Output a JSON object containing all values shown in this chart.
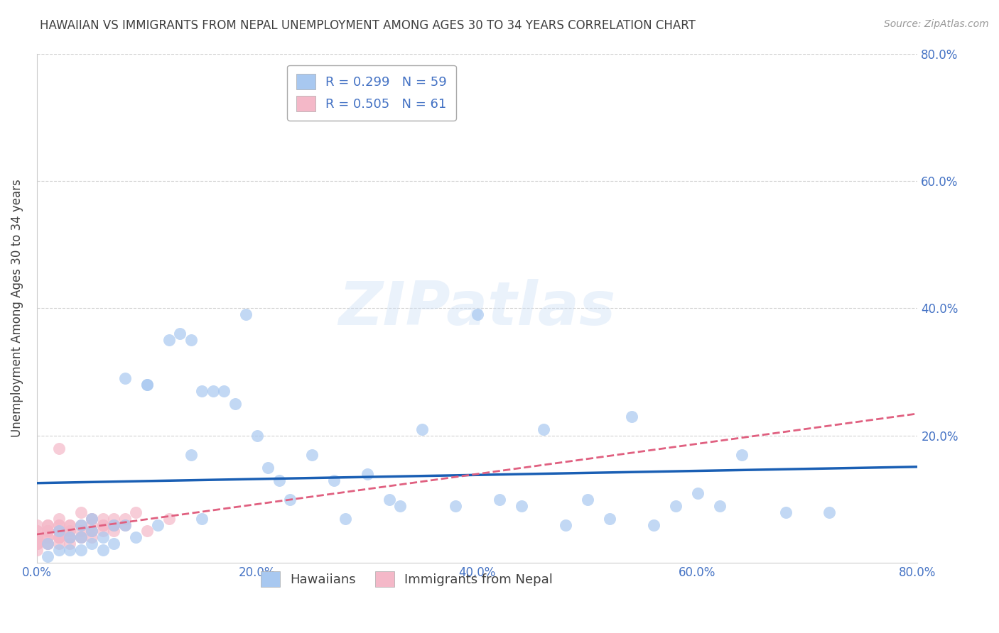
{
  "title": "HAWAIIAN VS IMMIGRANTS FROM NEPAL UNEMPLOYMENT AMONG AGES 30 TO 34 YEARS CORRELATION CHART",
  "source": "Source: ZipAtlas.com",
  "ylabel": "Unemployment Among Ages 30 to 34 years",
  "xlim": [
    0.0,
    0.8
  ],
  "ylim": [
    0.0,
    0.8
  ],
  "xtick_labels": [
    "0.0%",
    "",
    "20.0%",
    "",
    "40.0%",
    "",
    "60.0%",
    "",
    "80.0%"
  ],
  "xtick_vals": [
    0.0,
    0.1,
    0.2,
    0.3,
    0.4,
    0.5,
    0.6,
    0.7,
    0.8
  ],
  "ytick_labels": [
    "20.0%",
    "40.0%",
    "60.0%",
    "80.0%"
  ],
  "ytick_vals": [
    0.2,
    0.4,
    0.6,
    0.8
  ],
  "hawaiians_R": 0.299,
  "hawaiians_N": 59,
  "nepal_R": 0.505,
  "nepal_N": 61,
  "hawaiians_color": "#a8c8f0",
  "hawaiians_line_color": "#1a5fb4",
  "nepal_color": "#f4b8c8",
  "nepal_line_color": "#e06080",
  "background_color": "#ffffff",
  "grid_color": "#cccccc",
  "title_color": "#404040",
  "axis_label_color": "#404040",
  "tick_color": "#4472c4",
  "legend_text_color": "#4472c4",
  "watermark": "ZIPatlas",
  "hawaiians_x": [
    0.01,
    0.01,
    0.02,
    0.02,
    0.03,
    0.03,
    0.04,
    0.04,
    0.04,
    0.05,
    0.05,
    0.05,
    0.06,
    0.06,
    0.07,
    0.07,
    0.08,
    0.08,
    0.09,
    0.1,
    0.1,
    0.11,
    0.12,
    0.13,
    0.14,
    0.14,
    0.15,
    0.15,
    0.16,
    0.17,
    0.18,
    0.19,
    0.2,
    0.21,
    0.22,
    0.23,
    0.25,
    0.27,
    0.28,
    0.3,
    0.32,
    0.33,
    0.35,
    0.38,
    0.4,
    0.42,
    0.44,
    0.46,
    0.48,
    0.5,
    0.52,
    0.54,
    0.56,
    0.58,
    0.6,
    0.62,
    0.64,
    0.68,
    0.72
  ],
  "hawaiians_y": [
    0.03,
    0.01,
    0.05,
    0.02,
    0.04,
    0.02,
    0.04,
    0.06,
    0.02,
    0.05,
    0.03,
    0.07,
    0.04,
    0.02,
    0.06,
    0.03,
    0.29,
    0.06,
    0.04,
    0.28,
    0.28,
    0.06,
    0.35,
    0.36,
    0.17,
    0.35,
    0.27,
    0.07,
    0.27,
    0.27,
    0.25,
    0.39,
    0.2,
    0.15,
    0.13,
    0.1,
    0.17,
    0.13,
    0.07,
    0.14,
    0.1,
    0.09,
    0.21,
    0.09,
    0.39,
    0.1,
    0.09,
    0.21,
    0.06,
    0.1,
    0.07,
    0.23,
    0.06,
    0.09,
    0.11,
    0.09,
    0.17,
    0.08,
    0.08
  ],
  "nepal_x": [
    0.0,
    0.0,
    0.0,
    0.0,
    0.0,
    0.0,
    0.0,
    0.0,
    0.0,
    0.0,
    0.01,
    0.01,
    0.01,
    0.01,
    0.01,
    0.01,
    0.01,
    0.01,
    0.01,
    0.02,
    0.02,
    0.02,
    0.02,
    0.02,
    0.02,
    0.02,
    0.02,
    0.02,
    0.02,
    0.02,
    0.03,
    0.03,
    0.03,
    0.03,
    0.03,
    0.03,
    0.03,
    0.04,
    0.04,
    0.04,
    0.04,
    0.04,
    0.05,
    0.05,
    0.05,
    0.05,
    0.05,
    0.05,
    0.06,
    0.06,
    0.06,
    0.06,
    0.07,
    0.07,
    0.07,
    0.07,
    0.08,
    0.08,
    0.09,
    0.1,
    0.12
  ],
  "nepal_y": [
    0.02,
    0.03,
    0.04,
    0.05,
    0.03,
    0.05,
    0.04,
    0.06,
    0.03,
    0.04,
    0.03,
    0.04,
    0.05,
    0.06,
    0.03,
    0.05,
    0.04,
    0.06,
    0.05,
    0.03,
    0.04,
    0.05,
    0.06,
    0.04,
    0.05,
    0.06,
    0.04,
    0.07,
    0.05,
    0.18,
    0.03,
    0.04,
    0.05,
    0.06,
    0.04,
    0.05,
    0.06,
    0.04,
    0.05,
    0.06,
    0.04,
    0.08,
    0.05,
    0.07,
    0.04,
    0.06,
    0.05,
    0.07,
    0.06,
    0.05,
    0.07,
    0.06,
    0.06,
    0.07,
    0.05,
    0.06,
    0.07,
    0.06,
    0.08,
    0.05,
    0.07
  ]
}
